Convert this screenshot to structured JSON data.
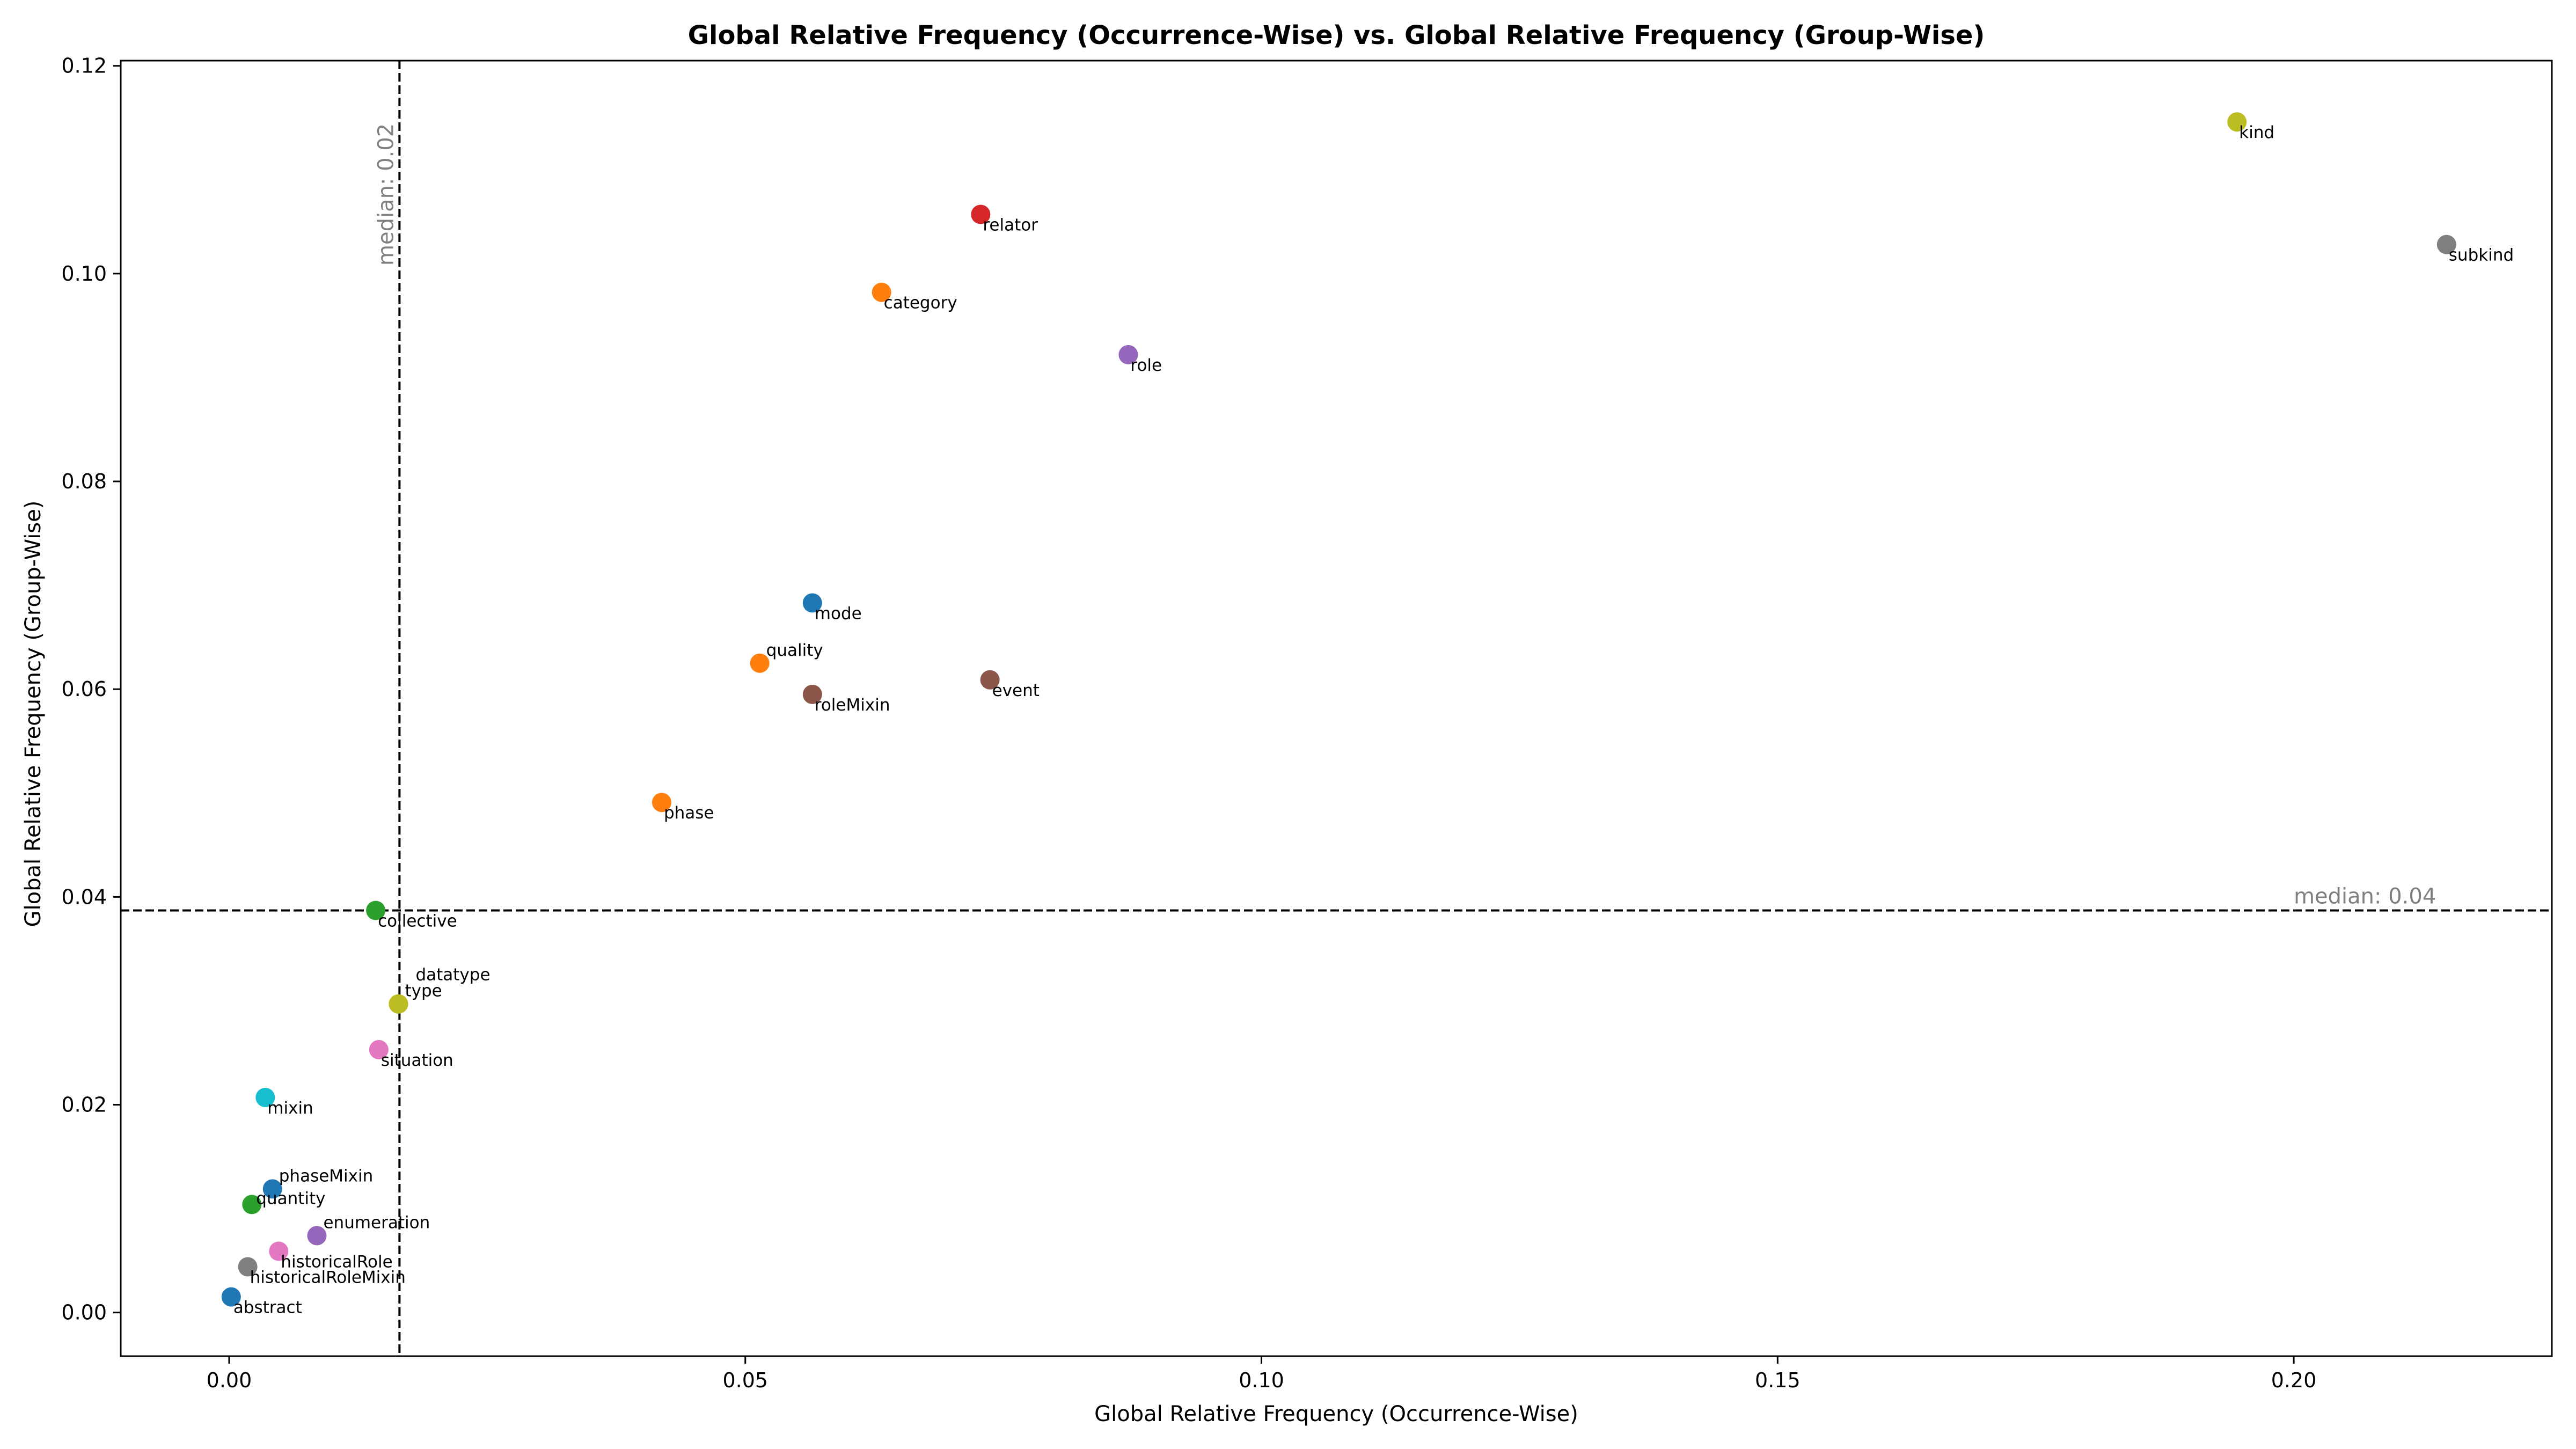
{
  "chart_data": {
    "type": "scatter",
    "title": "Global Relative Frequency (Occurrence-Wise) vs. Global Relative Frequency (Group-Wise)",
    "xlabel": "Global Relative Frequency (Occurrence-Wise)",
    "ylabel": "Global Relative Frequency (Group-Wise)",
    "xlim": [
      -0.0105,
      0.225
    ],
    "ylim": [
      -0.0042,
      0.1205
    ],
    "xticks": [
      0.0,
      0.05,
      0.1,
      0.15,
      0.2
    ],
    "xtick_labels": [
      "0.00",
      "0.05",
      "0.10",
      "0.15",
      "0.20"
    ],
    "yticks": [
      0.0,
      0.02,
      0.04,
      0.06,
      0.08,
      0.1,
      0.12
    ],
    "ytick_labels": [
      "0.00",
      "0.02",
      "0.04",
      "0.06",
      "0.08",
      "0.10",
      "0.12"
    ],
    "grid": false,
    "medians": {
      "x": {
        "value": 0.0165,
        "label": "median: 0.02"
      },
      "y": {
        "value": 0.0387,
        "label": "median: 0.04"
      }
    },
    "points": [
      {
        "name": "kind",
        "x": 0.1945,
        "y": 0.1146,
        "color": "#bcbd22",
        "label_pos": "br"
      },
      {
        "name": "subkind",
        "x": 0.2148,
        "y": 0.1028,
        "color": "#7f7f7f",
        "label_pos": "br"
      },
      {
        "name": "relator",
        "x": 0.0728,
        "y": 0.1057,
        "color": "#d62728",
        "label_pos": "br"
      },
      {
        "name": "category",
        "x": 0.0632,
        "y": 0.0982,
        "color": "#ff7f0e",
        "label_pos": "br"
      },
      {
        "name": "role",
        "x": 0.0871,
        "y": 0.0922,
        "color": "#9467bd",
        "label_pos": "br"
      },
      {
        "name": "mode",
        "x": 0.0565,
        "y": 0.0683,
        "color": "#1f77b4",
        "label_pos": "br"
      },
      {
        "name": "quality",
        "x": 0.0514,
        "y": 0.0625,
        "color": "#ff7f0e",
        "label_pos": "tr"
      },
      {
        "name": "event",
        "x": 0.0737,
        "y": 0.0609,
        "color": "#8c564b",
        "label_pos": "br"
      },
      {
        "name": "roleMixin",
        "x": 0.0565,
        "y": 0.0595,
        "color": "#8c564b",
        "label_pos": "br"
      },
      {
        "name": "phase",
        "x": 0.0419,
        "y": 0.0491,
        "color": "#ff7f0e",
        "label_pos": "br"
      },
      {
        "name": "collective",
        "x": 0.0142,
        "y": 0.0387,
        "color": "#2ca02c",
        "label_pos": "br"
      },
      {
        "name": "datatype",
        "x": 0.0164,
        "y": 0.0297,
        "color": "#bcbd22",
        "label_pos": "tr2"
      },
      {
        "name": "type",
        "x": 0.0164,
        "y": 0.0297,
        "color": "#bcbd22",
        "label_pos": "tr"
      },
      {
        "name": "situation",
        "x": 0.0145,
        "y": 0.0253,
        "color": "#e377c2",
        "label_pos": "br"
      },
      {
        "name": "mixin",
        "x": 0.0035,
        "y": 0.0207,
        "color": "#17becf",
        "label_pos": "br"
      },
      {
        "name": "phaseMixin",
        "x": 0.0042,
        "y": 0.0119,
        "color": "#1f77b4",
        "label_pos": "tr"
      },
      {
        "name": "quantity",
        "x": 0.0022,
        "y": 0.0104,
        "color": "#2ca02c",
        "label_pos": "r"
      },
      {
        "name": "enumeration",
        "x": 0.0085,
        "y": 0.0074,
        "color": "#9467bd",
        "label_pos": "tr"
      },
      {
        "name": "historicalRole",
        "x": 0.0048,
        "y": 0.0059,
        "color": "#e377c2",
        "label_pos": "br"
      },
      {
        "name": "historicalRoleMixin",
        "x": 0.0018,
        "y": 0.0044,
        "color": "#7f7f7f",
        "label_pos": "br"
      },
      {
        "name": "abstract",
        "x": 0.0002,
        "y": 0.0015,
        "color": "#1f77b4",
        "label_pos": "br"
      }
    ]
  }
}
